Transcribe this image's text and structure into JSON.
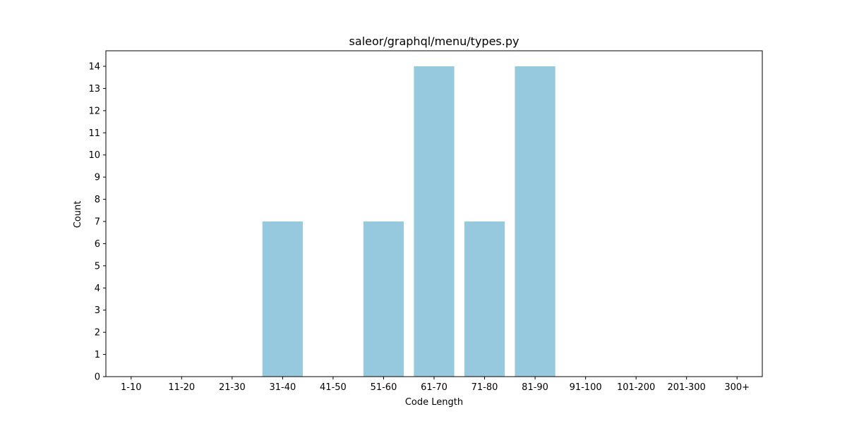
{
  "chart_data": {
    "type": "bar",
    "title": "saleor/graphql/menu/types.py",
    "xlabel": "Code Length",
    "ylabel": "Count",
    "categories": [
      "1-10",
      "11-20",
      "21-30",
      "31-40",
      "41-50",
      "51-60",
      "61-70",
      "71-80",
      "81-90",
      "91-100",
      "101-200",
      "201-300",
      "300+"
    ],
    "values": [
      0,
      0,
      0,
      7,
      0,
      7,
      14,
      7,
      14,
      0,
      0,
      0,
      0
    ],
    "ylim": [
      0,
      14.7
    ],
    "yticks": [
      "0",
      "1",
      "2",
      "3",
      "4",
      "5",
      "6",
      "7",
      "8",
      "9",
      "10",
      "11",
      "12",
      "13",
      "14"
    ],
    "grid": false,
    "bar_color": "#96c9dd"
  }
}
